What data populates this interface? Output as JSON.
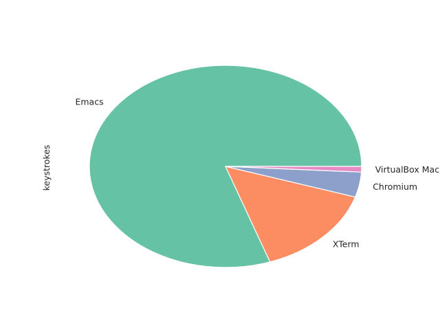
{
  "chart_data": {
    "type": "pie",
    "title": "",
    "ylabel": "keystrokes",
    "categories": [
      "Emacs",
      "XTerm",
      "Chromium",
      "VirtualBox Machine"
    ],
    "values": [
      80.3,
      14.8,
      4.0,
      0.9
    ],
    "colors": [
      "#66c2a5",
      "#fc8d62",
      "#8da0cb",
      "#e78ac3"
    ],
    "start_angle_deg": 0,
    "direction": "counterclockwise",
    "legend": "none"
  }
}
